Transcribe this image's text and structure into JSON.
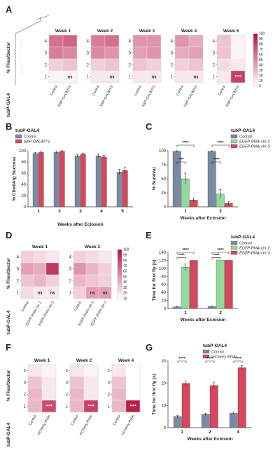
{
  "colors": {
    "control": "#7a8aa0",
    "red": "#d6475d",
    "green": "#93d99b",
    "heat_low": "#ffffff",
    "heat_high": "#b8123f"
  },
  "panels": {
    "A": "A",
    "B": "B",
    "C": "C",
    "D": "D",
    "E": "E",
    "F": "F",
    "G": "G"
  },
  "axes": {
    "flies_sector": "% Flies/Sector",
    "climbing": "% Climbing Success",
    "survival": "% Survival",
    "time": "Time for first fly (s)",
    "weeks_after": "Weeks after Eclosion"
  },
  "genotype": "tubP-GAL4",
  "heatmap_scale": [
    "100",
    "90",
    "80",
    "70",
    "60",
    "50",
    "40",
    "30",
    "20",
    "10",
    "0"
  ],
  "chart_data": [
    {
      "id": "A",
      "type": "heatmap",
      "rows": [
        "4",
        "3",
        "2",
        "1"
      ],
      "columns": [
        "Control",
        "tubP-GAL80TS"
      ],
      "colorbar_range": [
        0,
        100
      ],
      "annotation": "ns",
      "panels": [
        {
          "title": "Week 1",
          "values": [
            [
              60,
              65
            ],
            [
              55,
              50
            ],
            [
              20,
              25
            ],
            [
              5,
              5
            ]
          ],
          "sig": "ns"
        },
        {
          "title": "Week 2",
          "values": [
            [
              55,
              60
            ],
            [
              50,
              45
            ],
            [
              20,
              25
            ],
            [
              10,
              10
            ]
          ],
          "sig": "ns"
        },
        {
          "title": "Week 3",
          "values": [
            [
              45,
              45
            ],
            [
              40,
              45
            ],
            [
              25,
              20
            ],
            [
              10,
              10
            ]
          ],
          "sig": "ns"
        },
        {
          "title": "Week 4",
          "values": [
            [
              45,
              35
            ],
            [
              35,
              40
            ],
            [
              20,
              25
            ],
            [
              10,
              10
            ]
          ],
          "sig": "ns"
        },
        {
          "title": "Week 5",
          "values": [
            [
              25,
              5
            ],
            [
              25,
              5
            ],
            [
              15,
              10
            ],
            [
              10,
              80
            ]
          ],
          "sig": "****"
        }
      ]
    },
    {
      "id": "B",
      "type": "bar",
      "title": "tubP-GAL4",
      "categories": [
        "1",
        "2",
        "3",
        "4",
        "5"
      ],
      "xlabel": "",
      "ylabel": "% Climbing Success",
      "ylim": [
        0,
        100
      ],
      "yticks": [
        0,
        20,
        40,
        60,
        80,
        100
      ],
      "series": [
        {
          "name": "Control",
          "values": [
            95,
            97,
            91,
            91,
            62
          ],
          "err": [
            2,
            2,
            2,
            3,
            5
          ]
        },
        {
          "name": "tubP-GAL80TS",
          "values": [
            97,
            99,
            94,
            89,
            65
          ],
          "err": [
            2,
            1,
            2,
            3,
            6
          ]
        }
      ]
    },
    {
      "id": "C",
      "type": "bar",
      "title": "tubP-GAL4",
      "categories": [
        "1",
        "2"
      ],
      "xlabel": "Weeks after Eclosion",
      "ylabel": "% Survival",
      "ylim": [
        0,
        100
      ],
      "yticks": [
        0,
        25,
        50,
        75,
        100
      ],
      "series": [
        {
          "name": "Control",
          "values": [
            99,
            99
          ],
          "err": [
            1,
            1
          ]
        },
        {
          "name": "EGFP-RNAi chr 2",
          "values": [
            50,
            23
          ],
          "err": [
            10,
            8
          ]
        },
        {
          "name": "EGFP-RNAi chr 3",
          "values": [
            12,
            6
          ],
          "err": [
            4,
            3
          ]
        }
      ],
      "sig": [
        "***",
        "****",
        "****",
        "****"
      ]
    },
    {
      "id": "D",
      "type": "heatmap",
      "rows": [
        "4",
        "3",
        "2",
        "1"
      ],
      "columns": [
        "Control",
        "EGFP-RNAi chr 2",
        "EGFP-RNAi chr 3"
      ],
      "colorbar_range": [
        10,
        100
      ],
      "panels": [
        {
          "title": "Week 1",
          "values": [
            [
              20,
              15,
              10
            ],
            [
              40,
              35,
              85
            ],
            [
              25,
              30,
              20
            ],
            [
              15,
              10,
              10
            ]
          ],
          "sig": [
            "ns",
            "ns"
          ]
        },
        {
          "title": "Week 2",
          "values": [
            [
              20,
              15,
              10
            ],
            [
              45,
              30,
              20
            ],
            [
              30,
              25,
              20
            ],
            [
              20,
              40,
              40
            ]
          ],
          "sig": [
            "ns",
            "ns"
          ]
        }
      ]
    },
    {
      "id": "E",
      "type": "bar",
      "title": "tubP-GAL4",
      "categories": [
        "1",
        "2"
      ],
      "xlabel": "Weeks after Eclosion",
      "ylabel": "Time for first fly (s)",
      "ylim": [
        0,
        140
      ],
      "yticks": [
        0,
        20,
        40,
        60,
        80,
        100,
        120,
        140
      ],
      "series": [
        {
          "name": "Control",
          "values": [
            4,
            5
          ],
          "err": [
            1,
            1
          ]
        },
        {
          "name": "EGFP-RNAi chr 2",
          "values": [
            103,
            120
          ],
          "err": [
            8,
            0
          ]
        },
        {
          "name": "EGFP-RNAi chr 3",
          "values": [
            120,
            120
          ],
          "err": [
            0,
            0
          ]
        }
      ],
      "sig": [
        "****",
        "****",
        "****",
        "****"
      ]
    },
    {
      "id": "F",
      "type": "heatmap",
      "rows": [
        "4",
        "3",
        "2",
        "1"
      ],
      "columns": [
        "Control",
        "mCherry-RNAi"
      ],
      "panels": [
        {
          "title": "Week 1",
          "values": [
            [
              10,
              5
            ],
            [
              25,
              10
            ],
            [
              30,
              10
            ],
            [
              30,
              75
            ]
          ],
          "sig": "****"
        },
        {
          "title": "Week 2",
          "values": [
            [
              10,
              5
            ],
            [
              25,
              10
            ],
            [
              30,
              10
            ],
            [
              30,
              80
            ]
          ],
          "sig": "****"
        },
        {
          "title": "Week 4",
          "values": [
            [
              10,
              0
            ],
            [
              25,
              0
            ],
            [
              30,
              0
            ],
            [
              30,
              95
            ]
          ],
          "sig": "****"
        }
      ]
    },
    {
      "id": "G",
      "type": "bar",
      "title": "tubP-GAL4",
      "categories": [
        "1",
        "2",
        "4"
      ],
      "xlabel": "Weeks after Eclosion",
      "ylabel": "Time for first fly (s)",
      "ylim": [
        0,
        30
      ],
      "yticks": [
        0,
        10,
        20,
        30
      ],
      "series": [
        {
          "name": "Control",
          "values": [
            5,
            6,
            6.5
          ],
          "err": [
            0.5,
            0.5,
            0.5
          ]
        },
        {
          "name": "mCherry-RNAi",
          "values": [
            20,
            19,
            27
          ],
          "err": [
            1,
            1.5,
            1
          ]
        }
      ],
      "sig": [
        "****",
        "****",
        "****"
      ]
    }
  ]
}
